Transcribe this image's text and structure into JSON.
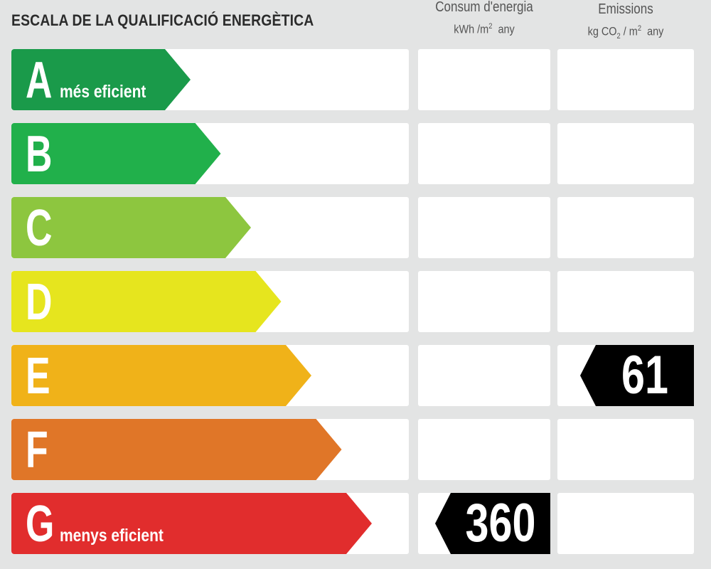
{
  "title": "ESCALA DE LA QUALIFICACIÓ ENERGÈTICA",
  "columns": {
    "consum": {
      "title": "Consum d'energia",
      "unit_pre": "kWh /m",
      "unit_sup": "2",
      "unit_post": "any"
    },
    "emissions": {
      "title": "Emissions",
      "unit_pre": "kg CO",
      "unit_sub": "2",
      "unit_mid": " / m",
      "unit_sup": "2",
      "unit_post": "any"
    }
  },
  "classes": [
    {
      "letter": "A",
      "label": "més eficient",
      "color": "#1a9a4a"
    },
    {
      "letter": "B",
      "label": "",
      "color": "#21b04b"
    },
    {
      "letter": "C",
      "label": "",
      "color": "#8dc63f"
    },
    {
      "letter": "D",
      "label": "",
      "color": "#e6e51e"
    },
    {
      "letter": "E",
      "label": "",
      "color": "#f0b219"
    },
    {
      "letter": "F",
      "label": "",
      "color": "#e07628"
    },
    {
      "letter": "G",
      "label": "menys eficient",
      "color": "#e12d2d"
    }
  ],
  "rating": {
    "consum": {
      "value": "360",
      "class": "G"
    },
    "emissions": {
      "value": "61",
      "class": "E"
    }
  }
}
